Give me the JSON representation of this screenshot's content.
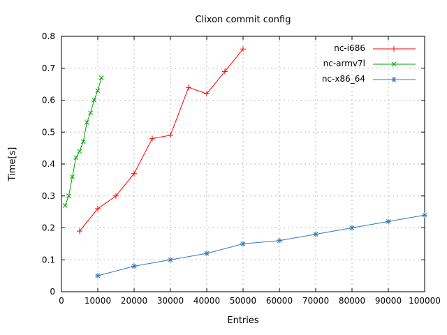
{
  "chart_data": {
    "type": "line",
    "title": "Clixon commit config",
    "xlabel": "Entries",
    "ylabel": "Time[s]",
    "xlim": [
      0,
      100000
    ],
    "ylim": [
      0,
      0.8
    ],
    "xtick_step": 10000,
    "ytick_step": 0.1,
    "grid": true,
    "legend_position": "top-right-inside",
    "background": "#ffffff",
    "grid_color": "#b8b8b8",
    "border_color": "#000000",
    "series": [
      {
        "name": "nc-i686",
        "color": "#ff0000",
        "marker": "plus",
        "x": [
          5000,
          10000,
          15000,
          20000,
          25000,
          30000,
          35000,
          40000,
          45000,
          50000
        ],
        "y": [
          0.19,
          0.26,
          0.3,
          0.37,
          0.48,
          0.49,
          0.64,
          0.62,
          0.69,
          0.76
        ]
      },
      {
        "name": "nc-armv7l",
        "color": "#00a000",
        "marker": "cross",
        "x": [
          1000,
          2000,
          3000,
          4000,
          5000,
          6000,
          7000,
          8000,
          9000,
          10000,
          11000
        ],
        "y": [
          0.27,
          0.3,
          0.36,
          0.42,
          0.44,
          0.47,
          0.53,
          0.56,
          0.6,
          0.63,
          0.67
        ]
      },
      {
        "name": "nc-x86_64",
        "color": "#3377bb",
        "marker": "star",
        "x": [
          10000,
          20000,
          30000,
          40000,
          50000,
          60000,
          70000,
          80000,
          90000,
          100000
        ],
        "y": [
          0.05,
          0.08,
          0.1,
          0.12,
          0.15,
          0.16,
          0.18,
          0.2,
          0.22,
          0.24
        ]
      }
    ]
  }
}
